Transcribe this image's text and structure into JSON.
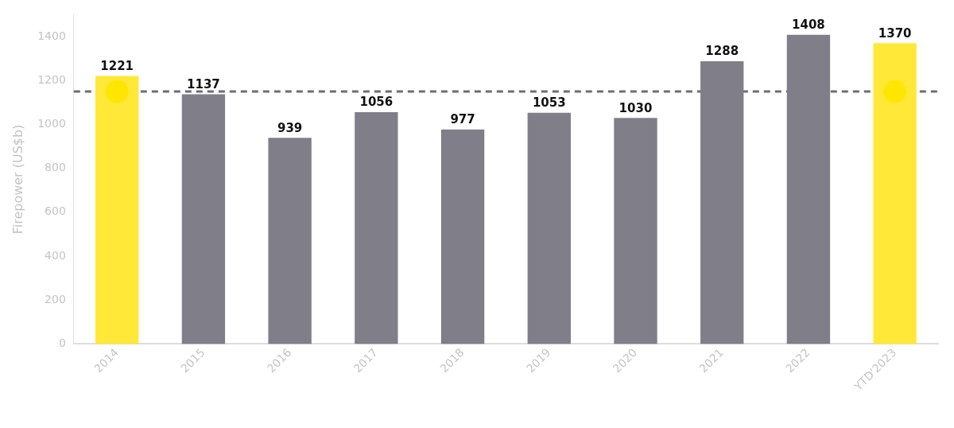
{
  "chart_data": {
    "type": "bar",
    "ylabel": "Firepower (US$b)",
    "categories": [
      "2014",
      "2015",
      "2016",
      "2017",
      "2018",
      "2019",
      "2020",
      "2021",
      "2022",
      "YTD'2023"
    ],
    "series": [
      {
        "values": [
          1221,
          1137,
          939,
          1056,
          977,
          1053,
          1030,
          1288,
          1408,
          1370
        ],
        "value_labels": [
          "1221",
          "1137",
          "939",
          "1056",
          "977",
          "1053",
          "1030",
          "1288",
          "1408",
          "1370"
        ],
        "colors": [
          "#ffe838",
          "#807f89",
          "#807f89",
          "#807f89",
          "#807f89",
          "#807f89",
          "#807f89",
          "#807f89",
          "#807f89",
          "#ffe838"
        ]
      },
      {
        "type": "scatter",
        "values": [
          1150,
          null,
          null,
          null,
          null,
          null,
          null,
          null,
          null,
          1150
        ],
        "color": "#ffe600",
        "marker": "circle"
      }
    ],
    "ref_lines": [
      {
        "axis": "y",
        "value": 1150,
        "color": "#6e6d76",
        "line_style": "dashed"
      }
    ],
    "ylim": [
      0,
      1500
    ],
    "yticks": [
      0,
      200,
      400,
      600,
      800,
      1000,
      1200,
      1400
    ],
    "grid": false,
    "legend": false
  }
}
